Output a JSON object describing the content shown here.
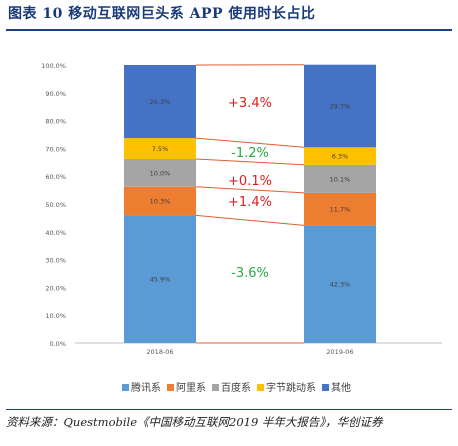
{
  "title": "图表 10 移动互联网巨头系 APP 使用时长占比",
  "source": "资料来源：Questmobile《中国移动互联网2019 半年大报告》，华创证券",
  "colors": {
    "title": "#1a3a7a",
    "rule": "#1f3f7f",
    "delta_up": "#e02020",
    "delta_down": "#2aa84a",
    "connector": "#e06030"
  },
  "chart_data": {
    "type": "bar",
    "stacked": true,
    "categories": [
      "2018-06",
      "2019-06"
    ],
    "series": [
      {
        "name": "腾讯系",
        "color": "#5b9bd5",
        "values": [
          45.9,
          42.3
        ],
        "labels": [
          "45.9%",
          "42.3%"
        ]
      },
      {
        "name": "阿里系",
        "color": "#ed7d31",
        "values": [
          10.3,
          11.7
        ],
        "labels": [
          "10.3%",
          "11.7%"
        ]
      },
      {
        "name": "百度系",
        "color": "#a5a5a5",
        "values": [
          10.0,
          10.1
        ],
        "labels": [
          "10.0%",
          "10.1%"
        ]
      },
      {
        "name": "字节跳动系",
        "color": "#ffc000",
        "values": [
          7.5,
          6.3
        ],
        "labels": [
          "7.5%",
          "6.3%"
        ]
      },
      {
        "name": "其他",
        "color": "#4472c4",
        "values": [
          26.3,
          29.7
        ],
        "labels": [
          "26.3%",
          "29.7%"
        ]
      }
    ],
    "ylim": [
      0,
      100
    ],
    "yticks": [
      "0.0%",
      "10.0%",
      "20.0%",
      "30.0%",
      "40.0%",
      "50.0%",
      "60.0%",
      "70.0%",
      "80.0%",
      "90.0%",
      "100.0%"
    ],
    "annotations": [
      {
        "series": "其他",
        "text": "+3.4%",
        "direction": "up"
      },
      {
        "series": "字节跳动系",
        "text": "-1.2%",
        "direction": "down"
      },
      {
        "series": "百度系",
        "text": "+0.1%",
        "direction": "up"
      },
      {
        "series": "阿里系",
        "text": "+1.4%",
        "direction": "up"
      },
      {
        "series": "腾讯系",
        "text": "-3.6%",
        "direction": "down"
      }
    ],
    "legend_position": "bottom",
    "grid": false
  }
}
